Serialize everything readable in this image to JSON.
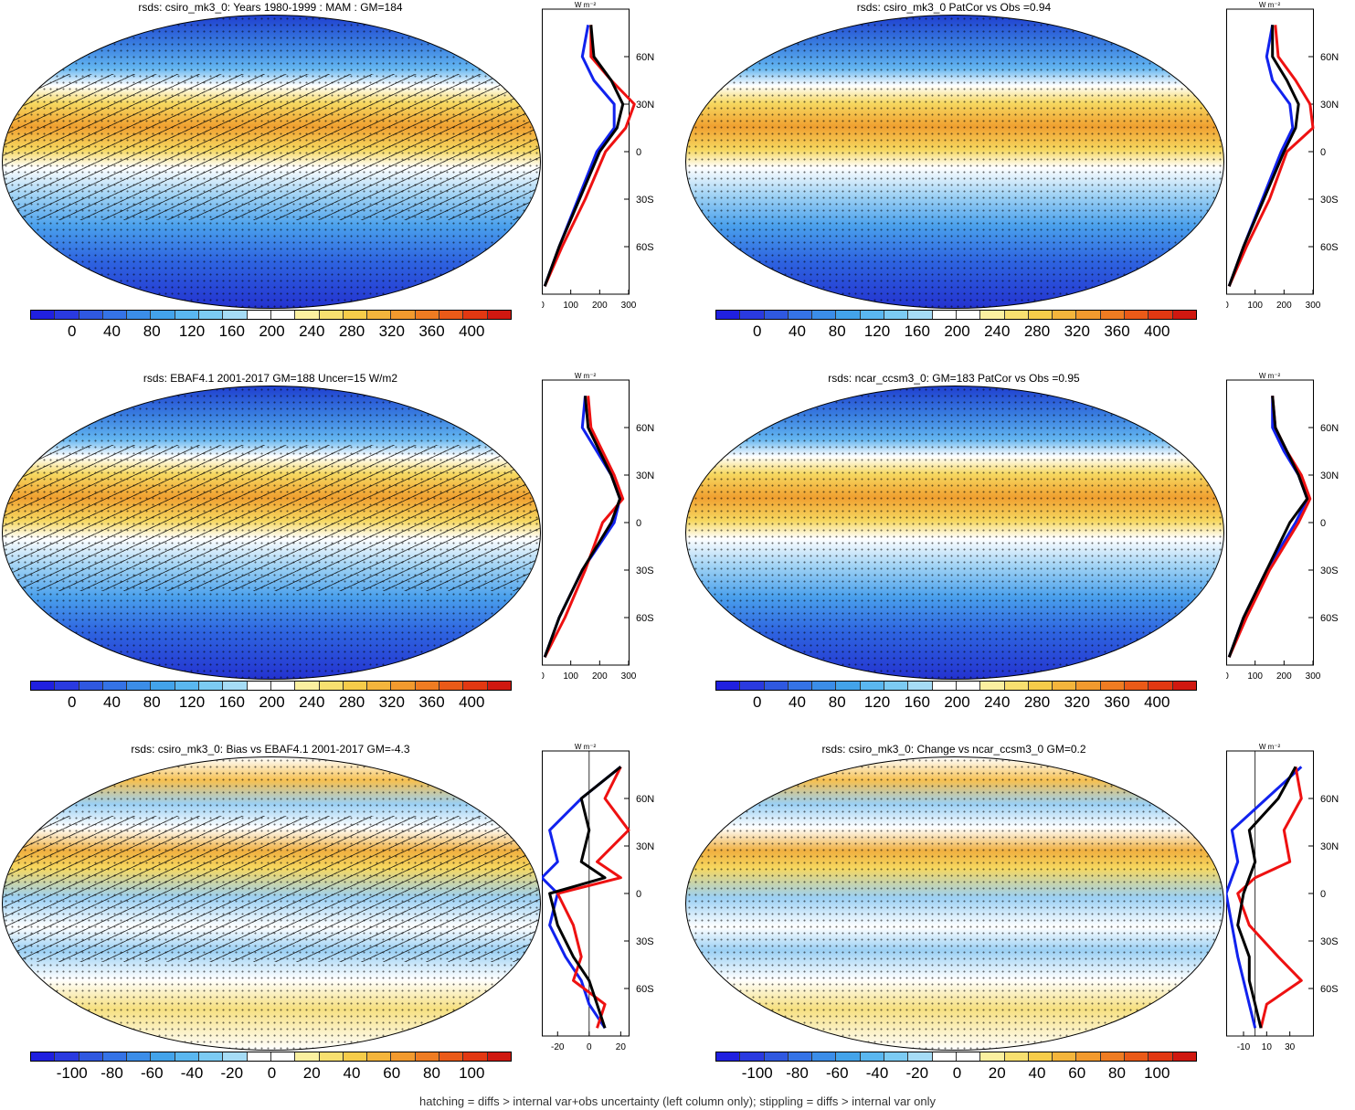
{
  "colors": {
    "cbar": [
      "#2020e0",
      "#2a3ae0",
      "#2f58e0",
      "#3573e6",
      "#3b8de8",
      "#43a3ea",
      "#5ab7f0",
      "#7ccbf3",
      "#a6dcf6",
      "#ffffff",
      "#ffffff",
      "#fbf0a0",
      "#f8e070",
      "#f6cc4a",
      "#f4b53c",
      "#f29a2e",
      "#ef7c22",
      "#ea5a18",
      "#e23812",
      "#d01810"
    ],
    "obs_line": "#000000",
    "model_line": "#ee1111",
    "other_line": "#1122ee"
  },
  "footer": "hatching = diffs > internal var+obs uncertainty (left column only); stippling = diffs > internal var only",
  "zonal_lat_labels": [
    "60N",
    "30N",
    "0",
    "30S",
    "60S"
  ],
  "zonal_unit": "W m⁻²",
  "panels": [
    {
      "title": "rsds: csiro_mk3_0: Years 1980-1999 : MAM : GM=184",
      "cbar_labels": [
        "0",
        "40",
        "80",
        "120",
        "160",
        "200",
        "240",
        "280",
        "320",
        "360",
        "400"
      ],
      "zonal_ticks": [
        "0",
        "100",
        "200",
        "300"
      ]
    },
    {
      "title": "rsds: csiro_mk3_0 PatCor vs Obs =0.94",
      "cbar_labels": [
        "0",
        "40",
        "80",
        "120",
        "160",
        "200",
        "240",
        "280",
        "320",
        "360",
        "400"
      ],
      "zonal_ticks": [
        "0",
        "100",
        "200",
        "300"
      ]
    },
    {
      "title": "rsds: EBAF4.1 2001-2017 GM=188 Uncer=15 W/m2",
      "cbar_labels": [
        "0",
        "40",
        "80",
        "120",
        "160",
        "200",
        "240",
        "280",
        "320",
        "360",
        "400"
      ],
      "zonal_ticks": [
        "0",
        "100",
        "200",
        "300"
      ]
    },
    {
      "title": "rsds: ncar_ccsm3_0: GM=183 PatCor vs Obs =0.95",
      "cbar_labels": [
        "0",
        "40",
        "80",
        "120",
        "160",
        "200",
        "240",
        "280",
        "320",
        "360",
        "400"
      ],
      "zonal_ticks": [
        "0",
        "100",
        "200",
        "300"
      ]
    },
    {
      "title": "rsds: csiro_mk3_0: Bias vs EBAF4.1 2001-2017 GM=-4.3",
      "cbar_labels": [
        "-100",
        "-80",
        "-60",
        "-40",
        "-20",
        "0",
        "20",
        "40",
        "60",
        "80",
        "100"
      ],
      "zonal_ticks": [
        "-20",
        "0",
        "20"
      ]
    },
    {
      "title": "rsds: csiro_mk3_0: Change vs ncar_ccsm3_0 GM=0.2",
      "cbar_labels": [
        "-100",
        "-80",
        "-60",
        "-40",
        "-20",
        "0",
        "20",
        "40",
        "60",
        "80",
        "100"
      ],
      "zonal_ticks": [
        "-10",
        "10",
        "30"
      ]
    }
  ],
  "chart_data": [
    {
      "type": "line",
      "title": "rsds: csiro_mk3_0: Years 1980-1999 : MAM : GM=184",
      "xlim": [
        0,
        300
      ],
      "x_ticks": [
        0,
        100,
        200,
        300
      ],
      "y_ticks": [
        "60N",
        "30N",
        "0",
        "30S",
        "60S"
      ],
      "series": [
        {
          "role": "black",
          "lat": [
            -85,
            -60,
            -30,
            0,
            15,
            30,
            45,
            60,
            80
          ],
          "values": [
            10,
            60,
            130,
            200,
            260,
            280,
            240,
            180,
            170
          ]
        },
        {
          "role": "red",
          "lat": [
            -85,
            -60,
            -30,
            0,
            15,
            30,
            45,
            60,
            80
          ],
          "values": [
            10,
            70,
            150,
            220,
            290,
            320,
            240,
            170,
            170
          ]
        },
        {
          "role": "blue",
          "lat": [
            -85,
            -60,
            -30,
            0,
            15,
            30,
            45,
            60,
            80
          ],
          "values": [
            10,
            60,
            125,
            190,
            250,
            250,
            180,
            140,
            160
          ]
        }
      ]
    },
    {
      "type": "line",
      "title": "rsds: csiro_mk3_0 PatCor vs Obs =0.94",
      "xlim": [
        0,
        300
      ],
      "x_ticks": [
        0,
        100,
        200,
        300
      ],
      "y_ticks": [
        "60N",
        "30N",
        "0",
        "30S",
        "60S"
      ],
      "series": [
        {
          "role": "black",
          "lat": [
            -85,
            -60,
            -30,
            0,
            15,
            30,
            45,
            60,
            80
          ],
          "values": [
            10,
            60,
            130,
            200,
            240,
            250,
            210,
            160,
            160
          ]
        },
        {
          "role": "red",
          "lat": [
            -85,
            -60,
            -30,
            0,
            15,
            30,
            45,
            60,
            80
          ],
          "values": [
            10,
            70,
            150,
            210,
            300,
            290,
            240,
            180,
            170
          ]
        },
        {
          "role": "blue",
          "lat": [
            -85,
            -60,
            -30,
            0,
            15,
            30,
            45,
            60,
            80
          ],
          "values": [
            10,
            60,
            125,
            190,
            230,
            220,
            160,
            140,
            160
          ]
        }
      ]
    },
    {
      "type": "line",
      "title": "rsds: EBAF4.1 2001-2017 GM=188 Uncer=15 W/m2",
      "xlim": [
        0,
        300
      ],
      "x_ticks": [
        0,
        100,
        200,
        300
      ],
      "y_ticks": [
        "60N",
        "30N",
        "0",
        "30S",
        "60S"
      ],
      "series": [
        {
          "role": "black",
          "lat": [
            -85,
            -60,
            -30,
            0,
            15,
            30,
            45,
            60,
            80
          ],
          "values": [
            10,
            60,
            140,
            240,
            270,
            240,
            200,
            160,
            150
          ]
        },
        {
          "role": "red",
          "lat": [
            -85,
            -60,
            -30,
            0,
            15,
            30,
            45,
            60,
            80
          ],
          "values": [
            10,
            80,
            150,
            210,
            280,
            250,
            210,
            170,
            160
          ]
        },
        {
          "role": "blue",
          "lat": [
            -85,
            -60,
            -30,
            0,
            15,
            30,
            45,
            60,
            80
          ],
          "values": [
            10,
            60,
            140,
            250,
            270,
            240,
            190,
            140,
            150
          ]
        }
      ]
    },
    {
      "type": "line",
      "title": "rsds: ncar_ccsm3_0: GM=183 PatCor vs Obs =0.95",
      "xlim": [
        0,
        300
      ],
      "x_ticks": [
        0,
        100,
        200,
        300
      ],
      "y_ticks": [
        "60N",
        "30N",
        "0",
        "30S",
        "60S"
      ],
      "series": [
        {
          "role": "black",
          "lat": [
            -85,
            -60,
            -30,
            0,
            15,
            30,
            45,
            60,
            80
          ],
          "values": [
            10,
            60,
            140,
            220,
            280,
            250,
            210,
            170,
            160
          ]
        },
        {
          "role": "red",
          "lat": [
            -85,
            -60,
            -30,
            0,
            15,
            30,
            45,
            60,
            80
          ],
          "values": [
            10,
            70,
            150,
            250,
            290,
            260,
            210,
            170,
            160
          ]
        },
        {
          "role": "blue",
          "lat": [
            -85,
            -60,
            -30,
            0,
            15,
            30,
            45,
            60,
            80
          ],
          "values": [
            10,
            60,
            140,
            240,
            280,
            250,
            200,
            160,
            160
          ]
        }
      ]
    },
    {
      "type": "line",
      "title": "rsds: csiro_mk3_0: Bias vs EBAF4.1 2001-2017 GM=-4.3",
      "xlim": [
        -30,
        25
      ],
      "x_ticks": [
        -20,
        0,
        20
      ],
      "y_ticks": [
        "60N",
        "30N",
        "0",
        "30S",
        "60S"
      ],
      "series": [
        {
          "role": "black",
          "lat": [
            -85,
            -70,
            -55,
            -40,
            -20,
            0,
            10,
            20,
            40,
            60,
            80
          ],
          "values": [
            10,
            5,
            0,
            -10,
            -20,
            -25,
            10,
            -5,
            0,
            -5,
            20
          ]
        },
        {
          "role": "red",
          "lat": [
            -85,
            -70,
            -55,
            -40,
            -20,
            0,
            10,
            20,
            40,
            60,
            80
          ],
          "values": [
            5,
            10,
            -10,
            -5,
            -10,
            -20,
            20,
            5,
            25,
            10,
            20
          ]
        },
        {
          "role": "blue",
          "lat": [
            -85,
            -70,
            -55,
            -40,
            -20,
            0,
            10,
            20,
            40,
            60,
            80
          ],
          "values": [
            10,
            0,
            -5,
            -15,
            -25,
            -20,
            -30,
            -20,
            -25,
            -5,
            20
          ]
        }
      ]
    },
    {
      "type": "line",
      "title": "rsds: csiro_mk3_0: Change vs ncar_ccsm3_0 GM=0.2",
      "xlim": [
        -25,
        50
      ],
      "x_ticks": [
        -10,
        10,
        30
      ],
      "y_ticks": [
        "60N",
        "30N",
        "0",
        "30S",
        "60S"
      ],
      "series": [
        {
          "role": "black",
          "lat": [
            -85,
            -70,
            -55,
            -40,
            -20,
            0,
            10,
            20,
            40,
            60,
            80
          ],
          "values": [
            5,
            0,
            -5,
            -5,
            -15,
            -10,
            -5,
            0,
            -5,
            20,
            35
          ]
        },
        {
          "role": "red",
          "lat": [
            -85,
            -70,
            -55,
            -40,
            -20,
            0,
            10,
            20,
            40,
            60,
            80
          ],
          "values": [
            5,
            10,
            40,
            20,
            -5,
            -15,
            0,
            30,
            25,
            40,
            35
          ]
        },
        {
          "role": "blue",
          "lat": [
            -85,
            -70,
            -55,
            -40,
            -20,
            0,
            10,
            20,
            40,
            60,
            80
          ],
          "values": [
            0,
            -5,
            -10,
            -15,
            -20,
            -25,
            -20,
            -15,
            -20,
            10,
            40
          ]
        }
      ]
    }
  ]
}
